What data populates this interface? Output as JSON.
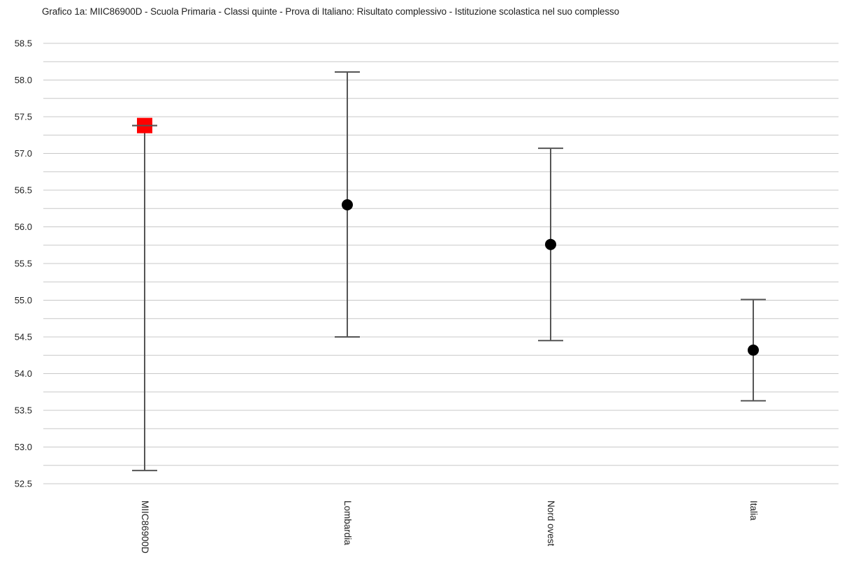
{
  "chart_data": {
    "type": "errorbar",
    "title": "Grafico 1a: MIIC86900D - Scuola Primaria - Classi quinte - Prova di Italiano: Risultato complessivo - Istituzione scolastica nel suo complesso",
    "xlabel": "",
    "ylabel": "",
    "ylim": [
      52.5,
      58.5
    ],
    "y_ticks": [
      "52.5",
      "53.0",
      "53.5",
      "54.0",
      "54.5",
      "55.0",
      "55.5",
      "56.0",
      "56.5",
      "57.0",
      "57.5",
      "58.0",
      "58.5"
    ],
    "grid": true,
    "categories": [
      "MIIC86900D",
      "Lombardia",
      "Nord ovest",
      "Italia"
    ],
    "values": [
      57.38,
      56.3,
      55.76,
      54.32
    ],
    "lower": [
      52.68,
      54.5,
      54.45,
      53.63
    ],
    "upper": [
      57.38,
      58.11,
      57.07,
      55.01
    ],
    "markers": [
      "square",
      "circle",
      "circle",
      "circle"
    ],
    "marker_colors": [
      "#ff0000",
      "#000000",
      "#000000",
      "#000000"
    ],
    "errorbar_color": "#555555",
    "gridline_color": "#c8c8c8"
  }
}
